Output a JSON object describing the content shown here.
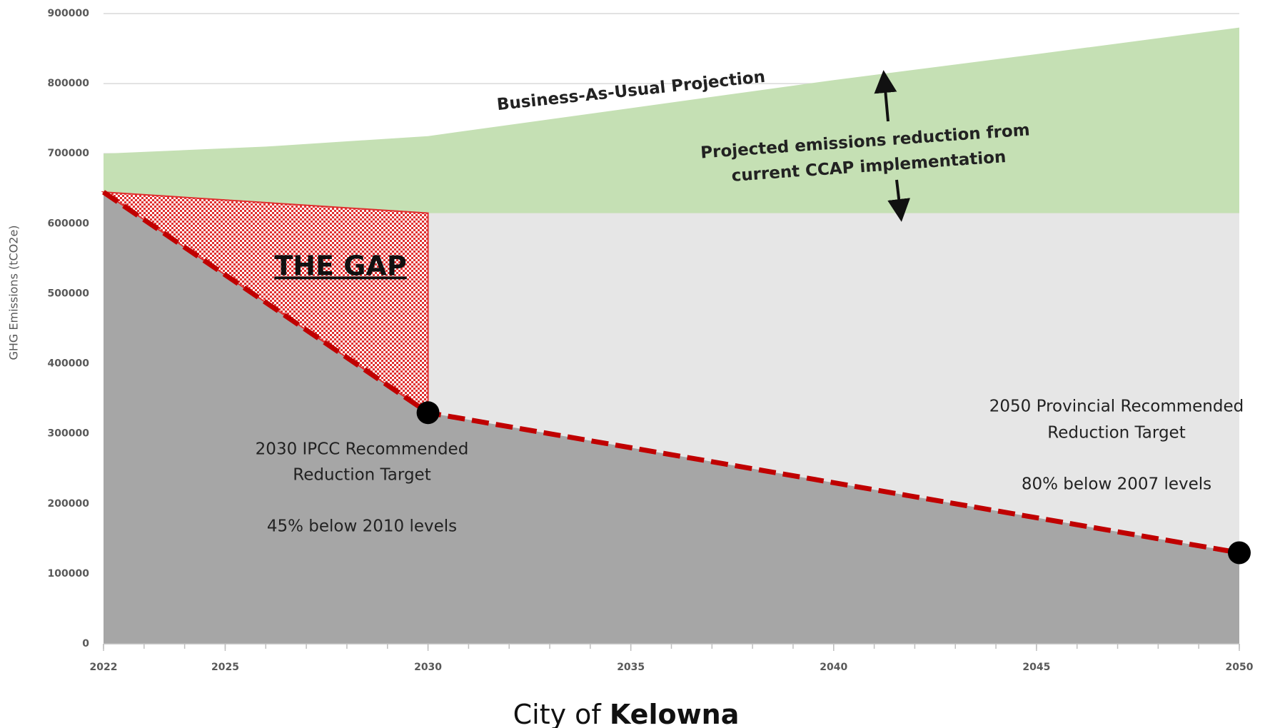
{
  "chart_data": {
    "type": "area",
    "y_label": "GHG Emissions (tCO2e)",
    "xlim": [
      2022,
      2050
    ],
    "xticks": [
      2022,
      2025,
      2030,
      2035,
      2040,
      2045,
      2050
    ],
    "xminorticks": [
      2022,
      2023,
      2024,
      2025,
      2026,
      2027,
      2028,
      2029,
      2030,
      2031,
      2032,
      2033,
      2034,
      2035,
      2036,
      2037,
      2038,
      2039,
      2040,
      2041,
      2042,
      2043,
      2044,
      2045,
      2046,
      2047,
      2048,
      2049,
      2050
    ],
    "ylim": [
      0,
      900000
    ],
    "yticks": [
      0,
      100000,
      200000,
      300000,
      400000,
      500000,
      600000,
      700000,
      800000,
      900000
    ],
    "grid": true,
    "series": [
      {
        "color": "#c5e0b4",
        "x": [
          2022,
          2026,
          2030,
          2035,
          2040,
          2045,
          2050
        ],
        "values": [
          700000,
          710000,
          725000,
          765000,
          805000,
          842000,
          880000
        ]
      },
      {
        "color": "#e6e6e6",
        "x": [
          2022,
          2030,
          2050
        ],
        "values": [
          645000,
          615000,
          615000
        ]
      },
      {
        "color": "#a6a6a6",
        "line_color": "#c00000",
        "x": [
          2022,
          2030,
          2050
        ],
        "values": [
          645000,
          330000,
          130000
        ]
      }
    ],
    "gap_color": "#e03030",
    "annotations": [
      "Business-As-Usual Projection",
      "Projected emissions reduction from",
      "current CCAP implementation",
      "THE GAP",
      "2030 IPCC Recommended",
      "Reduction Target",
      "45% below 2010 levels",
      "2050 Provincial Recommended",
      "Reduction Target",
      "80% below 2007 levels"
    ],
    "footer": [
      "City of",
      "Kelowna"
    ]
  }
}
